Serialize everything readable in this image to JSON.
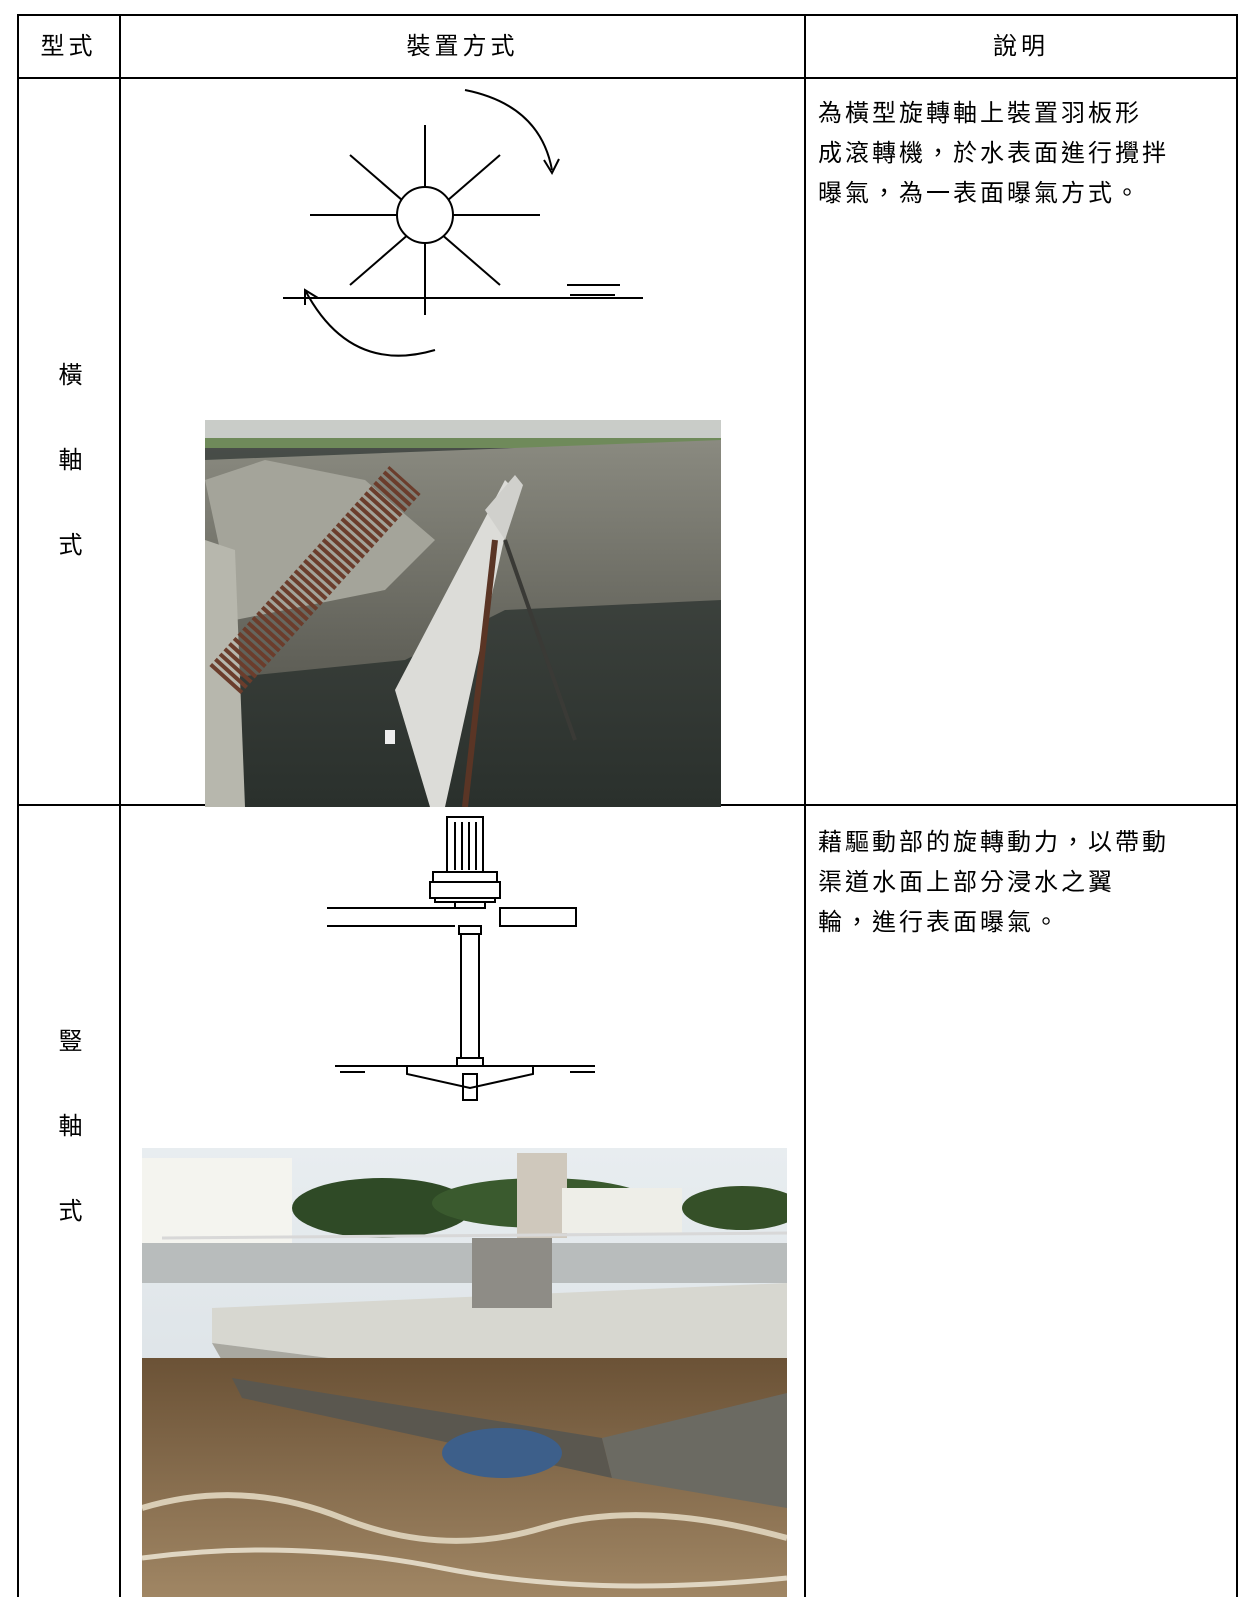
{
  "table": {
    "header": [
      "型式",
      "裝置方式",
      "說明"
    ],
    "rows": [
      {
        "type": "橫軸式",
        "description": [
          "為橫型旋轉軸上裝置羽板形",
          "成滾轉機，於水表面進行攪拌",
          "曝氣，為一表面曝氣方式。"
        ]
      },
      {
        "type": "豎軸式",
        "description": [
          "藉驅動部的旋轉動力，以帶動",
          "渠道水面上部分浸水之翼",
          "輪，進行表面曝氣。"
        ]
      }
    ]
  }
}
